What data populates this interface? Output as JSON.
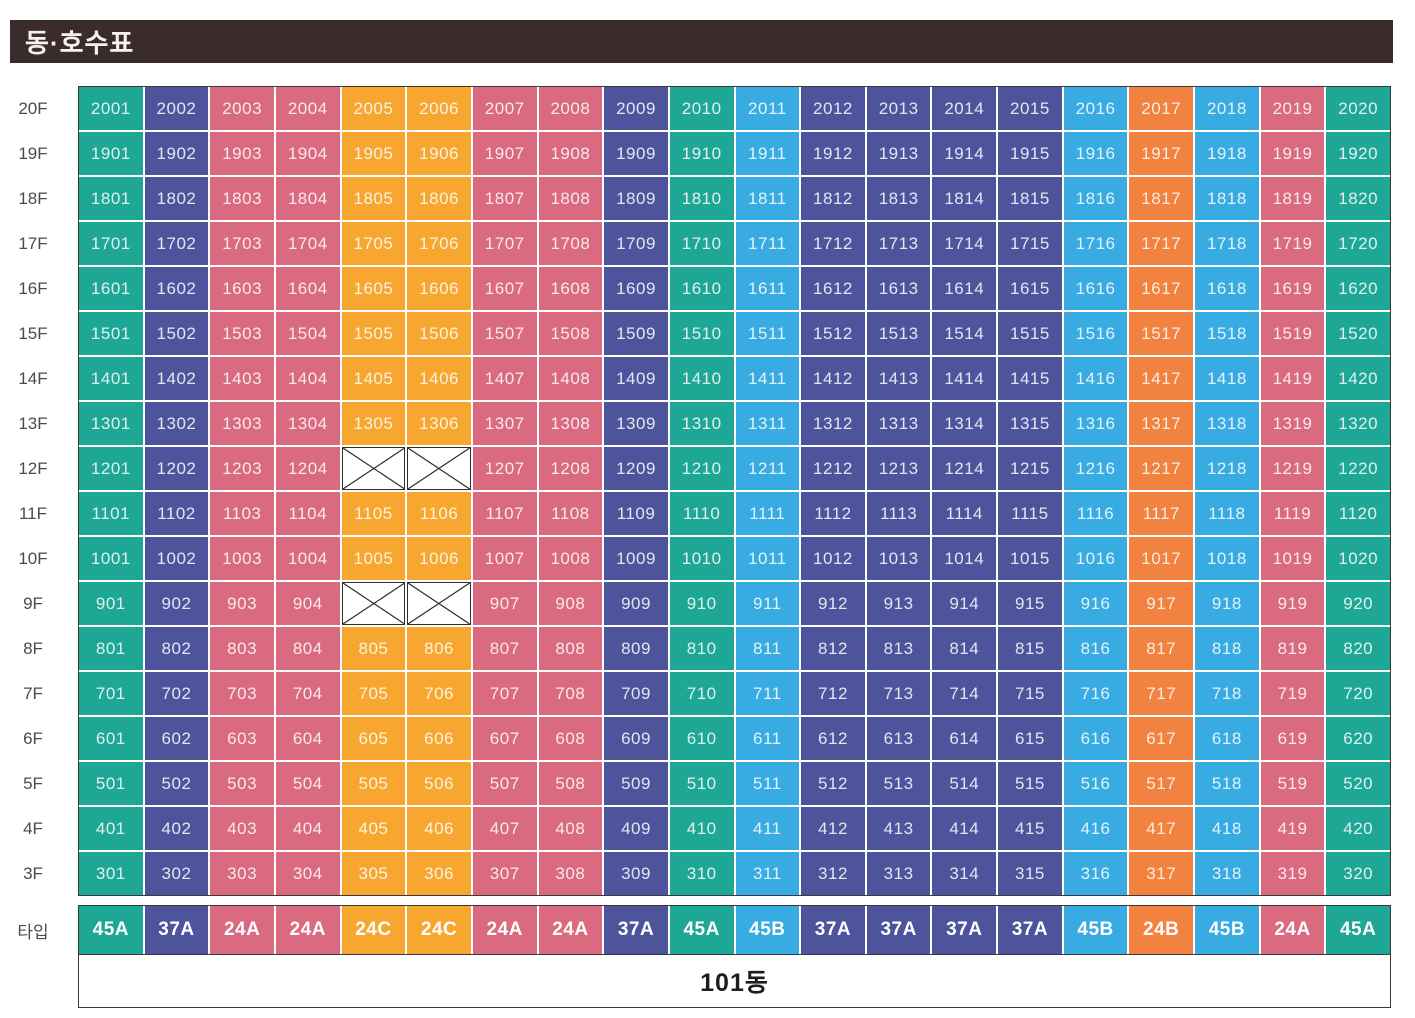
{
  "title": "동·호수표",
  "colors": {
    "title_bar_bg": "#3b2c2c",
    "title_text": "#f7f3ec",
    "grid_border": "#3a3a3a",
    "cell_text": "rgba(255,255,255,0.85)",
    "floor_label_text": "#4b4b4b",
    "building_text": "#1d1d1d",
    "type_colors": {
      "45A": "#1fa796",
      "37A": "#4d549b",
      "24A": "#da6a7f",
      "24C": "#f7a72f",
      "45B": "#38ace2",
      "24B": "#f2823f"
    }
  },
  "chart_data": {
    "type": "table",
    "title": "동·호수표",
    "building": "101동",
    "type_row_label": "타입",
    "column_types": [
      "45A",
      "37A",
      "24A",
      "24A",
      "24C",
      "24C",
      "24A",
      "24A",
      "37A",
      "45A",
      "45B",
      "37A",
      "37A",
      "37A",
      "37A",
      "45B",
      "24B",
      "45B",
      "24A",
      "45A"
    ],
    "crossed_cells": [
      "12F col5",
      "12F col6",
      "9F col5",
      "9F col6"
    ],
    "floors": [
      {
        "label": "20F",
        "units": [
          "2001",
          "2002",
          "2003",
          "2004",
          "2005",
          "2006",
          "2007",
          "2008",
          "2009",
          "2010",
          "2011",
          "2012",
          "2013",
          "2014",
          "2015",
          "2016",
          "2017",
          "2018",
          "2019",
          "2020"
        ]
      },
      {
        "label": "19F",
        "units": [
          "1901",
          "1902",
          "1903",
          "1904",
          "1905",
          "1906",
          "1907",
          "1908",
          "1909",
          "1910",
          "1911",
          "1912",
          "1913",
          "1914",
          "1915",
          "1916",
          "1917",
          "1918",
          "1919",
          "1920"
        ]
      },
      {
        "label": "18F",
        "units": [
          "1801",
          "1802",
          "1803",
          "1804",
          "1805",
          "1806",
          "1807",
          "1808",
          "1809",
          "1810",
          "1811",
          "1812",
          "1813",
          "1814",
          "1815",
          "1816",
          "1817",
          "1818",
          "1819",
          "1820"
        ]
      },
      {
        "label": "17F",
        "units": [
          "1701",
          "1702",
          "1703",
          "1704",
          "1705",
          "1706",
          "1707",
          "1708",
          "1709",
          "1710",
          "1711",
          "1712",
          "1713",
          "1714",
          "1715",
          "1716",
          "1717",
          "1718",
          "1719",
          "1720"
        ]
      },
      {
        "label": "16F",
        "units": [
          "1601",
          "1602",
          "1603",
          "1604",
          "1605",
          "1606",
          "1607",
          "1608",
          "1609",
          "1610",
          "1611",
          "1612",
          "1613",
          "1614",
          "1615",
          "1616",
          "1617",
          "1618",
          "1619",
          "1620"
        ]
      },
      {
        "label": "15F",
        "units": [
          "1501",
          "1502",
          "1503",
          "1504",
          "1505",
          "1506",
          "1507",
          "1508",
          "1509",
          "1510",
          "1511",
          "1512",
          "1513",
          "1514",
          "1515",
          "1516",
          "1517",
          "1518",
          "1519",
          "1520"
        ]
      },
      {
        "label": "14F",
        "units": [
          "1401",
          "1402",
          "1403",
          "1404",
          "1405",
          "1406",
          "1407",
          "1408",
          "1409",
          "1410",
          "1411",
          "1412",
          "1413",
          "1414",
          "1415",
          "1416",
          "1417",
          "1418",
          "1419",
          "1420"
        ]
      },
      {
        "label": "13F",
        "units": [
          "1301",
          "1302",
          "1303",
          "1304",
          "1305",
          "1306",
          "1307",
          "1308",
          "1309",
          "1310",
          "1311",
          "1312",
          "1313",
          "1314",
          "1315",
          "1316",
          "1317",
          "1318",
          "1319",
          "1320"
        ]
      },
      {
        "label": "12F",
        "units": [
          "1201",
          "1202",
          "1203",
          "1204",
          null,
          null,
          "1207",
          "1208",
          "1209",
          "1210",
          "1211",
          "1212",
          "1213",
          "1214",
          "1215",
          "1216",
          "1217",
          "1218",
          "1219",
          "1220"
        ]
      },
      {
        "label": "11F",
        "units": [
          "1101",
          "1102",
          "1103",
          "1104",
          "1105",
          "1106",
          "1107",
          "1108",
          "1109",
          "1110",
          "1111",
          "1112",
          "1113",
          "1114",
          "1115",
          "1116",
          "1117",
          "1118",
          "1119",
          "1120"
        ]
      },
      {
        "label": "10F",
        "units": [
          "1001",
          "1002",
          "1003",
          "1004",
          "1005",
          "1006",
          "1007",
          "1008",
          "1009",
          "1010",
          "1011",
          "1012",
          "1013",
          "1014",
          "1015",
          "1016",
          "1017",
          "1018",
          "1019",
          "1020"
        ]
      },
      {
        "label": "9F",
        "units": [
          "901",
          "902",
          "903",
          "904",
          null,
          null,
          "907",
          "908",
          "909",
          "910",
          "911",
          "912",
          "913",
          "914",
          "915",
          "916",
          "917",
          "918",
          "919",
          "920"
        ]
      },
      {
        "label": "8F",
        "units": [
          "801",
          "802",
          "803",
          "804",
          "805",
          "806",
          "807",
          "808",
          "809",
          "810",
          "811",
          "812",
          "813",
          "814",
          "815",
          "816",
          "817",
          "818",
          "819",
          "820"
        ]
      },
      {
        "label": "7F",
        "units": [
          "701",
          "702",
          "703",
          "704",
          "705",
          "706",
          "707",
          "708",
          "709",
          "710",
          "711",
          "712",
          "713",
          "714",
          "715",
          "716",
          "717",
          "718",
          "719",
          "720"
        ]
      },
      {
        "label": "6F",
        "units": [
          "601",
          "602",
          "603",
          "604",
          "605",
          "606",
          "607",
          "608",
          "609",
          "610",
          "611",
          "612",
          "613",
          "614",
          "615",
          "616",
          "617",
          "618",
          "619",
          "620"
        ]
      },
      {
        "label": "5F",
        "units": [
          "501",
          "502",
          "503",
          "504",
          "505",
          "506",
          "507",
          "508",
          "509",
          "510",
          "511",
          "512",
          "513",
          "514",
          "515",
          "516",
          "517",
          "518",
          "519",
          "520"
        ]
      },
      {
        "label": "4F",
        "units": [
          "401",
          "402",
          "403",
          "404",
          "405",
          "406",
          "407",
          "408",
          "409",
          "410",
          "411",
          "412",
          "413",
          "414",
          "415",
          "416",
          "417",
          "418",
          "419",
          "420"
        ]
      },
      {
        "label": "3F",
        "units": [
          "301",
          "302",
          "303",
          "304",
          "305",
          "306",
          "307",
          "308",
          "309",
          "310",
          "311",
          "312",
          "313",
          "314",
          "315",
          "316",
          "317",
          "318",
          "319",
          "320"
        ]
      }
    ]
  }
}
